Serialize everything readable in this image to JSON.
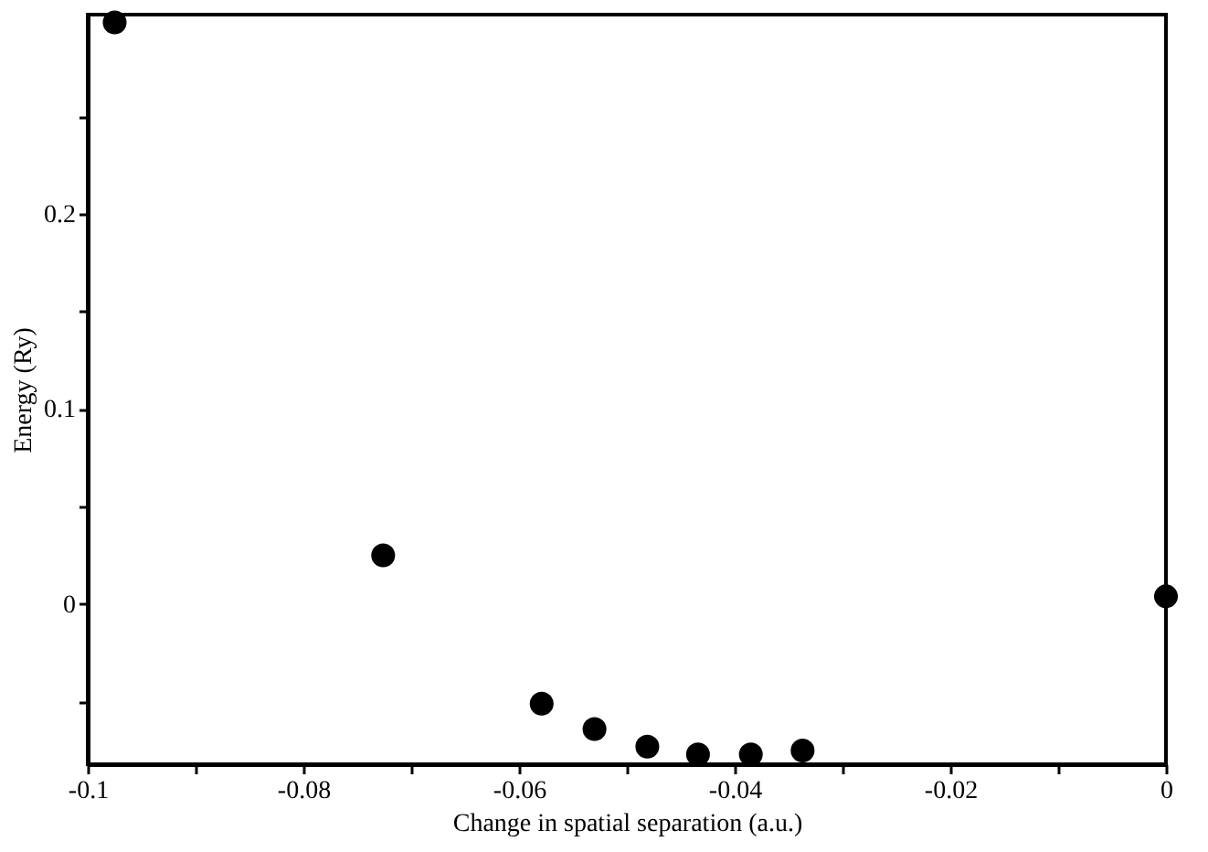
{
  "chart_data": {
    "type": "scatter",
    "xlabel": "Change in spatial separation (a.u.)",
    "ylabel": "Energy (Ry)",
    "x": [
      -0.0975,
      -0.0726,
      -0.0579,
      -0.053,
      -0.0481,
      -0.0434,
      -0.0385,
      -0.0337,
      0
    ],
    "series": [
      {
        "color": "#000000",
        "values": [
          0.298,
          0.025,
          -0.051,
          -0.064,
          -0.073,
          -0.077,
          -0.077,
          -0.075,
          0.004
        ]
      }
    ],
    "marker": "circle",
    "grid": false,
    "xlim": [
      -0.1,
      0
    ],
    "ylim": [
      -0.082,
      0.302
    ],
    "xticks": [
      -0.1,
      {
        "value": -0.09,
        "label": null
      },
      -0.08,
      {
        "value": -0.07,
        "label": null
      },
      -0.06,
      {
        "value": -0.05,
        "label": null
      },
      -0.04,
      {
        "value": -0.03,
        "label": null
      },
      -0.02,
      {
        "value": -0.01,
        "label": null
      },
      0
    ],
    "yticks": [
      {
        "value": -0.05,
        "label": null
      },
      0,
      {
        "value": 0.05,
        "label": null
      },
      0.1,
      {
        "value": 0.15,
        "label": null
      },
      0.2,
      {
        "value": 0.25,
        "label": null
      }
    ]
  }
}
